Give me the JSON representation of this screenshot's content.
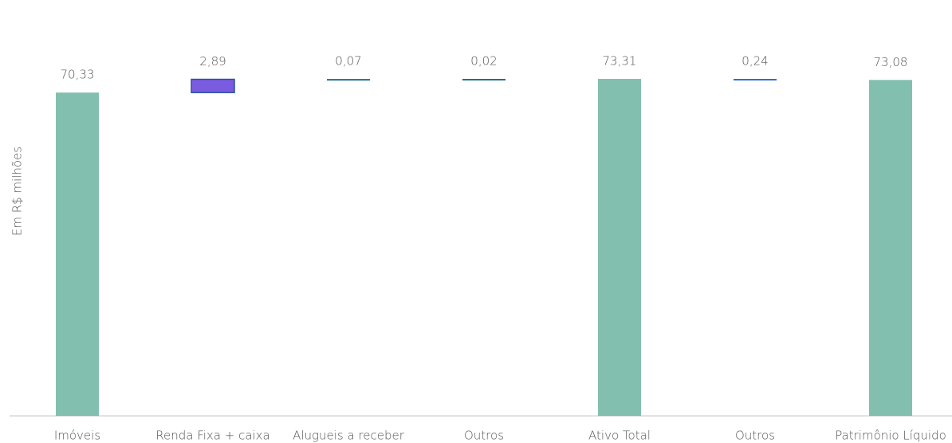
{
  "chart_data": {
    "type": "waterfall",
    "y_label": "Em R$ milhões",
    "categories": [
      "Imóveis",
      "Renda Fixa + caixa",
      "Alugueis a receber",
      "Outros",
      "Ativo Total",
      "Outros",
      "Patrimônio Líquido"
    ],
    "values": [
      70.33,
      2.89,
      0.07,
      0.02,
      73.31,
      0.24,
      73.08
    ],
    "value_labels": [
      "70,33",
      "2,89",
      "0,07",
      "0,02",
      "73,31",
      "0,24",
      "73,08"
    ],
    "measure": [
      "total",
      "increase",
      "increase",
      "increase",
      "total",
      "decrease",
      "total"
    ],
    "colors": [
      "#82bfae",
      "#7b5ce0",
      "#1f6f8b",
      "#1f6f8b",
      "#82bfae",
      "#2a6fd6",
      "#82bfae"
    ]
  }
}
